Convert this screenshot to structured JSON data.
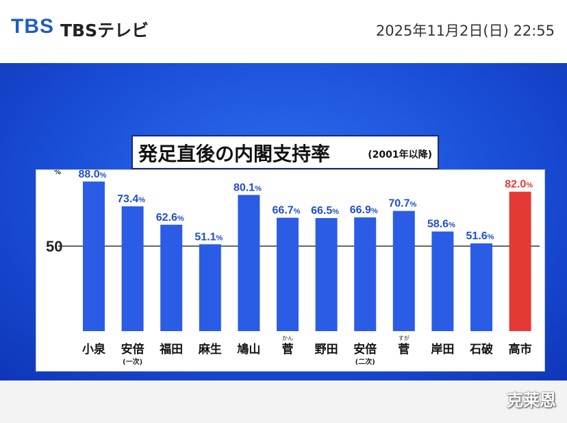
{
  "header": {
    "logo": "TBS",
    "channel_name": "TBSテレビ",
    "datetime": "2025年11月2日(日) 22:55"
  },
  "watermark": "克莱恩",
  "colors": {
    "bar": "#2b5ce6",
    "highlight_bar": "#e53935",
    "label": "#1f4fc8",
    "highlight_label": "#e53935"
  },
  "chart_data": {
    "type": "bar",
    "title": "発足直後の内閣支持率",
    "subtitle": "(2001年以降)",
    "categories": [
      "小泉",
      "安倍",
      "福田",
      "麻生",
      "鳩山",
      "菅",
      "野田",
      "安倍",
      "菅",
      "岸田",
      "石破",
      "高市"
    ],
    "category_notes": [
      "",
      "(一次)",
      "",
      "",
      "",
      "",
      "",
      "(二次)",
      "",
      "",
      "",
      ""
    ],
    "category_ruby": [
      "",
      "",
      "",
      "",
      "",
      "かん",
      "",
      "",
      "すが",
      "",
      "",
      ""
    ],
    "values": [
      88.0,
      73.4,
      62.6,
      51.1,
      80.1,
      66.7,
      66.5,
      66.9,
      70.7,
      58.6,
      51.6,
      82.0
    ],
    "value_labels": [
      "88.0%",
      "73.4%",
      "62.6%",
      "51.1%",
      "80.1%",
      "66.7%",
      "66.5%",
      "66.9%",
      "70.7%",
      "58.6%",
      "51.6%",
      "82.0%"
    ],
    "highlight_index": 11,
    "y_ticks": [
      "100",
      "50"
    ],
    "y_unit": "%",
    "ylim": [
      0,
      100
    ],
    "gridline_at": 50,
    "grid": false,
    "legend": "none"
  }
}
